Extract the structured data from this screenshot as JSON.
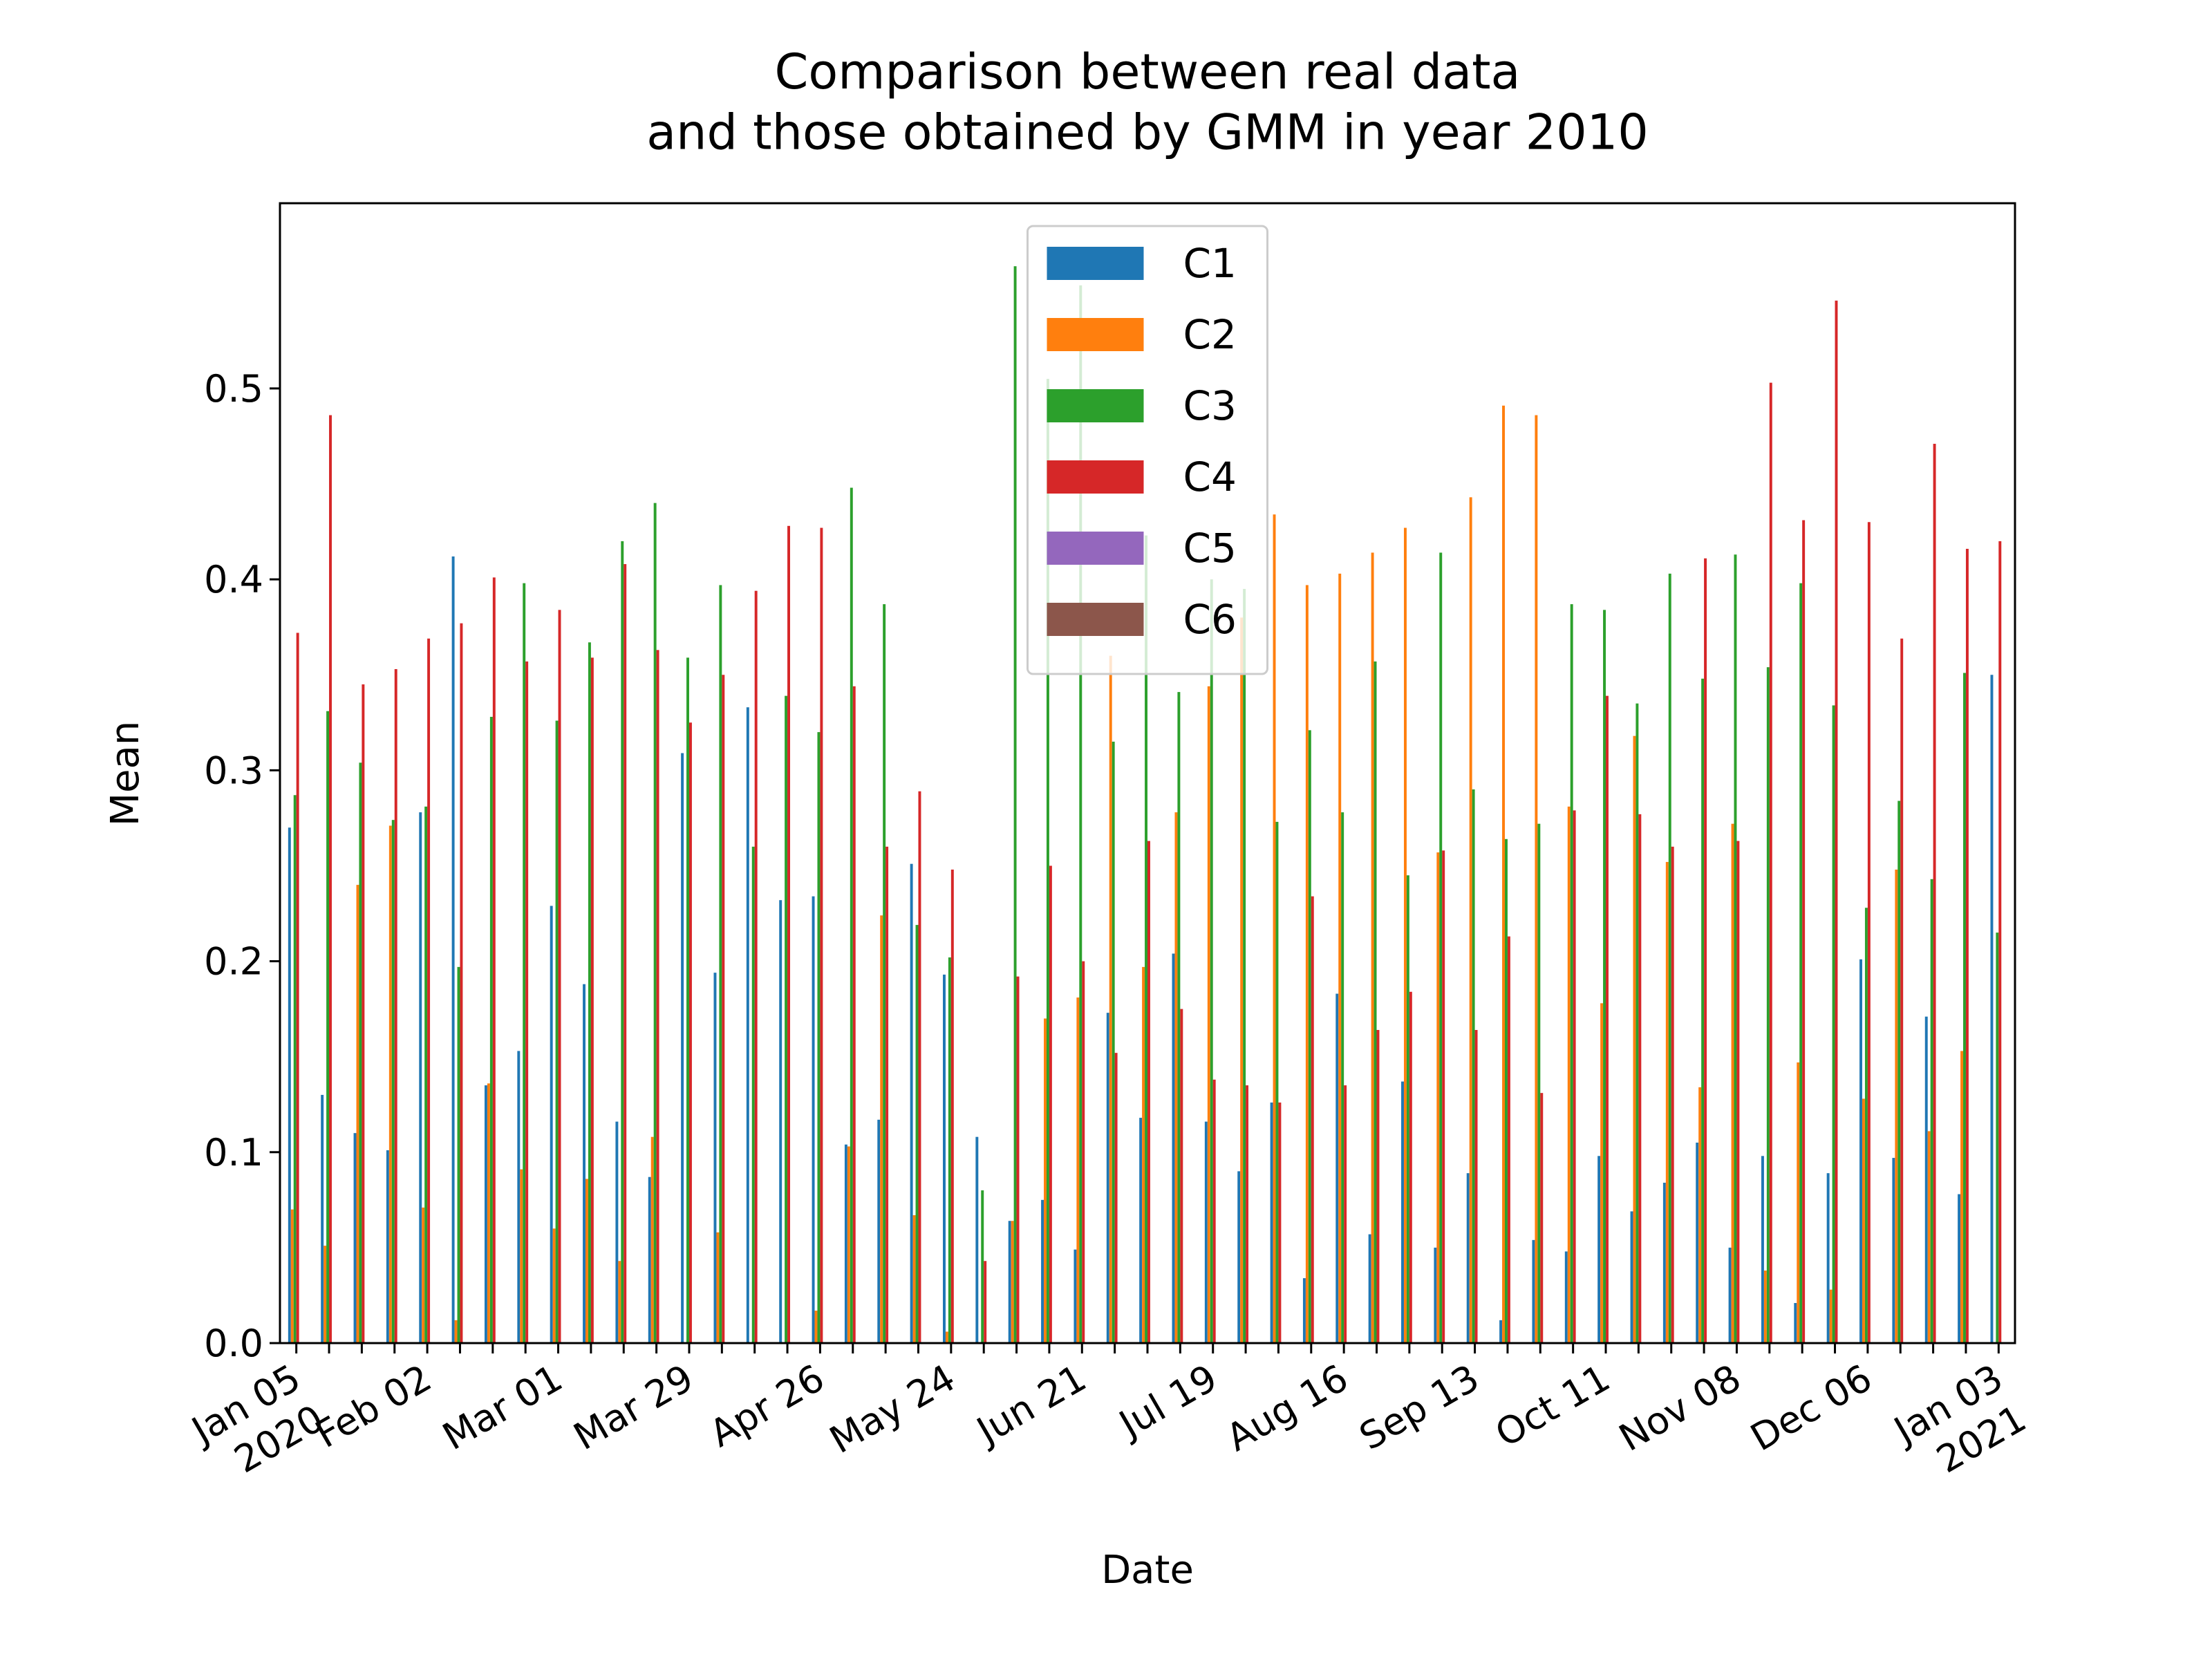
{
  "chart_data": {
    "type": "bar",
    "title": "Comparison between real data\nand those obtained by GMM in year 2010",
    "x_label": "Date",
    "y_label": "Mean",
    "categories": [
      "Jan 05\n2020",
      null,
      null,
      null,
      "Feb 02",
      null,
      null,
      null,
      "Mar 01",
      null,
      null,
      null,
      "Mar 29",
      null,
      null,
      null,
      "Apr 26",
      null,
      null,
      null,
      "May 24",
      null,
      null,
      null,
      "Jun 21",
      null,
      null,
      null,
      "Jul 19",
      null,
      null,
      null,
      "Aug 16",
      null,
      null,
      null,
      "Sep 13",
      null,
      null,
      null,
      "Oct 11",
      null,
      null,
      null,
      "Nov 08",
      null,
      null,
      null,
      "Dec 06",
      null,
      null,
      null,
      "Jan 03\n2021"
    ],
    "series": [
      {
        "name": "C1",
        "color": "#1f77b4",
        "values": [
          0.27,
          0.13,
          0.11,
          0.101,
          0.278,
          0.412,
          0.135,
          0.153,
          0.229,
          0.188,
          0.116,
          0.087,
          0.309,
          0.194,
          0.333,
          0.232,
          0.234,
          0.104,
          0.117,
          0.251,
          0.193,
          0.108,
          0.064,
          0.075,
          0.049,
          0.173,
          0.118,
          0.204,
          0.116,
          0.09,
          0.126,
          0.034,
          0.183,
          0.057,
          0.137,
          0.05,
          0.089,
          0.012,
          0.054,
          0.048,
          0.098,
          0.069,
          0.084,
          0.105,
          0.05,
          0.098,
          0.021,
          0.089,
          0.201,
          0.097,
          0.171,
          0.078,
          0.35
        ]
      },
      {
        "name": "C2",
        "color": "#ff7f0e",
        "values": [
          0.07,
          0.051,
          0.24,
          0.271,
          0.071,
          0.012,
          0.136,
          0.091,
          0.06,
          0.086,
          0.043,
          0.108,
          0,
          0.058,
          0,
          0,
          0.017,
          0.103,
          0.224,
          0.067,
          0.006,
          0,
          0.064,
          0.17,
          0.181,
          0.36,
          0.197,
          0.278,
          0.344,
          0.38,
          0.434,
          0.397,
          0.403,
          0.414,
          0.427,
          0.257,
          0.443,
          0.491,
          0.486,
          0.281,
          0.178,
          0.318,
          0.252,
          0.134,
          0.272,
          0.038,
          0.147,
          0.028,
          0.128,
          0.248,
          0.111,
          0.153,
          0
        ]
      },
      {
        "name": "C3",
        "color": "#2ca02c",
        "values": [
          0.287,
          0.331,
          0.304,
          0.274,
          0.281,
          0.197,
          0.328,
          0.398,
          0.326,
          0.367,
          0.42,
          0.44,
          0.359,
          0.397,
          0.26,
          0.339,
          0.32,
          0.448,
          0.387,
          0.219,
          0.202,
          0.08,
          0.564,
          0.505,
          0.554,
          0.315,
          0.423,
          0.341,
          0.4,
          0.395,
          0.273,
          0.321,
          0.278,
          0.357,
          0.245,
          0.414,
          0.29,
          0.264,
          0.272,
          0.387,
          0.384,
          0.335,
          0.403,
          0.348,
          0.413,
          0.354,
          0.398,
          0.334,
          0.228,
          0.284,
          0.243,
          0.351,
          0.215
        ]
      },
      {
        "name": "C4",
        "color": "#d62728",
        "values": [
          0.372,
          0.486,
          0.345,
          0.353,
          0.369,
          0.377,
          0.401,
          0.357,
          0.384,
          0.359,
          0.408,
          0.363,
          0.325,
          0.35,
          0.394,
          0.428,
          0.427,
          0.344,
          0.26,
          0.289,
          0.248,
          0.043,
          0.192,
          0.25,
          0.2,
          0.152,
          0.263,
          0.175,
          0.138,
          0.135,
          0.126,
          0.234,
          0.135,
          0.164,
          0.184,
          0.258,
          0.164,
          0.213,
          0.131,
          0.279,
          0.339,
          0.277,
          0.26,
          0.411,
          0.263,
          0.503,
          0.431,
          0.546,
          0.43,
          0.369,
          0.471,
          0.416,
          0.42
        ]
      },
      {
        "name": "C5",
        "color": "#9467bd",
        "values": [
          null,
          null,
          null,
          null,
          null,
          null,
          null,
          null,
          null,
          null,
          null,
          null,
          null,
          null,
          null,
          null,
          null,
          null,
          null,
          null,
          null,
          null,
          null,
          null,
          null,
          null,
          null,
          null,
          null,
          null,
          null,
          null,
          null,
          null,
          null,
          null,
          null,
          null,
          null,
          null,
          null,
          null,
          null,
          null,
          null,
          null,
          null,
          null,
          null,
          null,
          null,
          null,
          null
        ]
      },
      {
        "name": "C6",
        "color": "#8c564b",
        "values": [
          null,
          null,
          null,
          null,
          null,
          null,
          null,
          null,
          null,
          null,
          null,
          null,
          null,
          null,
          null,
          null,
          null,
          null,
          null,
          null,
          null,
          null,
          null,
          null,
          null,
          null,
          null,
          null,
          null,
          null,
          null,
          null,
          null,
          null,
          null,
          null,
          null,
          null,
          null,
          null,
          null,
          null,
          null,
          null,
          null,
          null,
          null,
          null,
          null,
          null,
          null,
          null,
          null
        ]
      }
    ],
    "ylim": [
      0,
      0.597
    ],
    "yticks": [
      {
        "value": 0,
        "label": "0.0"
      },
      0.1,
      0.2,
      0.3,
      0.4,
      0.5
    ],
    "legend": "upper center"
  }
}
